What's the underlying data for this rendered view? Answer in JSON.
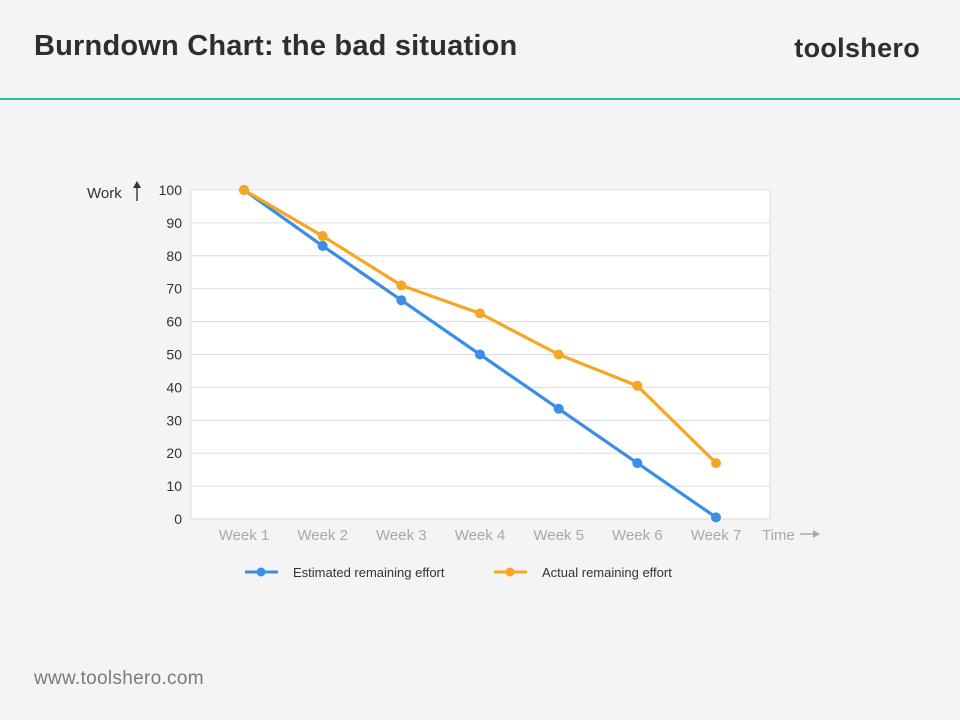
{
  "header": {
    "title": "Burndown Chart: the bad situation",
    "brand": "toolshero"
  },
  "footer": {
    "url": "www.toolshero.com"
  },
  "colors": {
    "accent": "#2ebfa5",
    "estimated": "#3a8ee6",
    "actual": "#f5a623"
  },
  "chart_data": {
    "type": "line",
    "title": "",
    "xlabel": "Time",
    "ylabel": "Work",
    "categories": [
      "Week 1",
      "Week 2",
      "Week 3",
      "Week 4",
      "Week 5",
      "Week 6",
      "Week 7"
    ],
    "ylim": [
      0,
      100
    ],
    "yticks": [
      0,
      10,
      20,
      30,
      40,
      50,
      60,
      70,
      80,
      90,
      100
    ],
    "grid": true,
    "legend_position": "bottom",
    "series": [
      {
        "name": "Estimated remaining effort",
        "color": "#3a8ee6",
        "values": [
          100,
          83,
          66.5,
          50,
          33.5,
          17,
          0.5
        ]
      },
      {
        "name": "Actual remaining effort",
        "color": "#f5a623",
        "values": [
          100,
          86,
          71,
          62.5,
          50,
          40.5,
          17
        ]
      }
    ]
  }
}
